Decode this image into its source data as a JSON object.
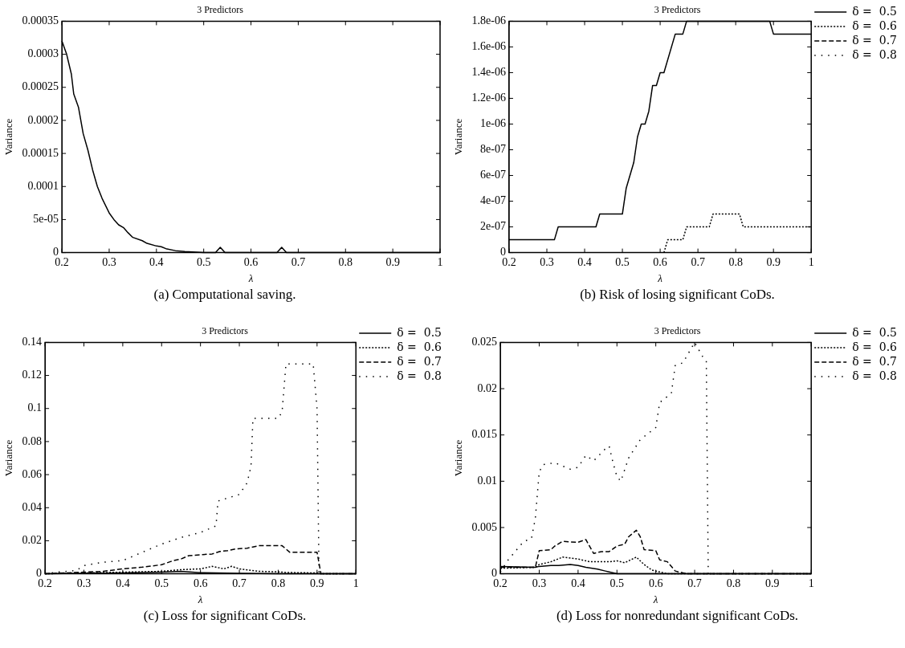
{
  "chart_data": [
    {
      "type": "line",
      "title": "3 Predictors",
      "xlabel": "λ",
      "ylabel": "Variance",
      "annotations": [
        "(a)  Computational saving."
      ],
      "xlim": [
        0.2,
        1
      ],
      "xticks": [
        0.2,
        0.3,
        0.4,
        0.5,
        0.6,
        0.7,
        0.8,
        0.9,
        1
      ],
      "ylim": [
        0,
        0.00035
      ],
      "yticks": [
        0,
        {
          "value": 5e-05,
          "label": "5e-05"
        },
        0.0001,
        0.00015,
        0.0002,
        0.00025,
        0.0003,
        0.00035
      ],
      "legend": false,
      "marker": "none",
      "series": [
        {
          "color": "#000000",
          "line_style": "solid",
          "x": [
            0.2,
            0.21,
            0.22,
            0.225,
            0.235,
            0.245,
            0.255,
            0.265,
            0.275,
            0.285,
            0.3,
            0.31,
            0.32,
            0.33,
            0.34,
            0.35,
            0.37,
            0.38,
            0.4,
            0.41,
            0.42,
            0.44,
            0.46,
            0.5,
            0.525,
            0.535,
            0.545,
            0.655,
            0.665,
            0.675,
            1
          ],
          "values": [
            0.00032,
            0.0003,
            0.00027,
            0.00024,
            0.00022,
            0.00018,
            0.000155,
            0.000125,
            0.0001,
            8.2e-05,
            6e-05,
            5e-05,
            4.2e-05,
            3.8e-05,
            3e-05,
            2.3e-05,
            1.8e-05,
            1.4e-05,
            1e-05,
            9e-06,
            6e-06,
            3e-06,
            1.5e-06,
            0,
            0,
            8e-06,
            0,
            0,
            8e-06,
            0,
            0
          ]
        }
      ]
    },
    {
      "type": "line",
      "title": "3 Predictors",
      "xlabel": "λ",
      "ylabel": "Variance",
      "annotations": [
        "(b) Risk of losing significant CoDs."
      ],
      "xlim": [
        0.2,
        1
      ],
      "xticks": [
        0.2,
        0.3,
        0.4,
        0.5,
        0.6,
        0.7,
        0.8,
        0.9,
        1
      ],
      "ylim": [
        0,
        1.8e-06
      ],
      "yticks": [
        0,
        {
          "value": 2e-07,
          "label": "2e-07"
        },
        {
          "value": 4e-07,
          "label": "4e-07"
        },
        {
          "value": 6e-07,
          "label": "6e-07"
        },
        {
          "value": 8e-07,
          "label": "8e-07"
        },
        {
          "value": 1e-06,
          "label": "1e-06"
        },
        {
          "value": 1.2e-06,
          "label": "1.2e-06"
        },
        {
          "value": 1.4e-06,
          "label": "1.4e-06"
        },
        {
          "value": 1.6e-06,
          "label": "1.6e-06"
        },
        {
          "value": 1.8e-06,
          "label": "1.8e-06"
        }
      ],
      "legend": "right",
      "marker": "none",
      "series": [
        {
          "name": "δ =  0.5",
          "color": "#000000",
          "line_style": "solid",
          "x": [
            0.2,
            0.32,
            0.33,
            0.43,
            0.44,
            0.5,
            0.51,
            0.52,
            0.53,
            0.54,
            0.55,
            0.56,
            0.57,
            0.58,
            0.59,
            0.6,
            0.61,
            0.64,
            0.66,
            0.67,
            0.89,
            0.9,
            1
          ],
          "values": [
            1e-07,
            1e-07,
            2e-07,
            2e-07,
            3e-07,
            3e-07,
            5e-07,
            6e-07,
            7e-07,
            9e-07,
            1e-06,
            1e-06,
            1.1e-06,
            1.3e-06,
            1.3e-06,
            1.4e-06,
            1.4e-06,
            1.7e-06,
            1.7e-06,
            1.8e-06,
            1.8e-06,
            1.7e-06,
            1.7e-06
          ]
        },
        {
          "name": "δ =  0.6",
          "color": "#000000",
          "line_style": "dotted",
          "x": [
            0.61,
            0.62,
            0.66,
            0.67,
            0.73,
            0.74,
            0.81,
            0.82,
            1
          ],
          "values": [
            0,
            1e-07,
            1e-07,
            2e-07,
            2e-07,
            3e-07,
            3e-07,
            2e-07,
            2e-07
          ]
        },
        {
          "name": "δ =  0.7",
          "color": "#000000",
          "line_style": "dashed"
        },
        {
          "name": "δ =  0.8",
          "color": "#000000",
          "line_style": "sparse"
        }
      ]
    },
    {
      "type": "line",
      "title": "3 Predictors",
      "xlabel": "λ",
      "ylabel": "Variance",
      "annotations": [
        "(c) Loss for significant CoDs."
      ],
      "xlim": [
        0.2,
        1
      ],
      "xticks": [
        0.2,
        0.3,
        0.4,
        0.5,
        0.6,
        0.7,
        0.8,
        0.9,
        1
      ],
      "ylim": [
        0,
        0.14
      ],
      "yticks": [
        0,
        0.02,
        0.04,
        0.06,
        0.08,
        0.1,
        0.12,
        0.14
      ],
      "legend": "right",
      "marker": "none",
      "series": [
        {
          "name": "δ =  0.5",
          "color": "#000000",
          "line_style": "solid",
          "x": [
            0.2,
            0.4,
            0.5,
            0.55,
            0.6,
            0.7,
            0.8,
            1
          ],
          "values": [
            0,
            0.0005,
            0.001,
            0.0015,
            0.0007,
            0.0003,
            0.0001,
            0
          ]
        },
        {
          "name": "δ =  0.6",
          "color": "#000000",
          "line_style": "dotted",
          "x": [
            0.2,
            0.3,
            0.4,
            0.5,
            0.55,
            0.6,
            0.63,
            0.66,
            0.68,
            0.7,
            0.75,
            0.8,
            0.82,
            0.9,
            0.91,
            1
          ],
          "values": [
            0,
            0.0005,
            0.001,
            0.0015,
            0.0025,
            0.003,
            0.0045,
            0.003,
            0.0045,
            0.003,
            0.0015,
            0.0012,
            0.0008,
            0.0005,
            0,
            0
          ]
        },
        {
          "name": "δ =  0.7",
          "color": "#000000",
          "line_style": "dashed",
          "x": [
            0.2,
            0.3,
            0.35,
            0.4,
            0.45,
            0.5,
            0.53,
            0.55,
            0.57,
            0.6,
            0.63,
            0.65,
            0.67,
            0.69,
            0.72,
            0.75,
            0.81,
            0.83,
            0.9,
            0.91,
            1
          ],
          "values": [
            0,
            0.001,
            0.0015,
            0.003,
            0.004,
            0.0055,
            0.008,
            0.009,
            0.011,
            0.0115,
            0.012,
            0.0135,
            0.014,
            0.015,
            0.0155,
            0.017,
            0.017,
            0.013,
            0.013,
            0,
            0
          ]
        },
        {
          "name": "δ =  0.8",
          "color": "#000000",
          "line_style": "sparse",
          "x": [
            0.2,
            0.23,
            0.28,
            0.3,
            0.35,
            0.4,
            0.45,
            0.5,
            0.55,
            0.6,
            0.63,
            0.64,
            0.645,
            0.7,
            0.72,
            0.73,
            0.735,
            0.8,
            0.81,
            0.82,
            0.89,
            0.9,
            0.905,
            1
          ],
          "values": [
            0,
            0.001,
            0.002,
            0.005,
            0.007,
            0.008,
            0.013,
            0.018,
            0.022,
            0.025,
            0.028,
            0.029,
            0.044,
            0.048,
            0.055,
            0.065,
            0.094,
            0.094,
            0.098,
            0.127,
            0.127,
            0.1,
            0,
            0
          ]
        }
      ]
    },
    {
      "type": "line",
      "title": "3 Predictors",
      "xlabel": "λ",
      "ylabel": "Variance",
      "annotations": [
        "(d) Loss for nonredundant significant CoDs."
      ],
      "xlim": [
        0.2,
        1
      ],
      "xticks": [
        0.2,
        0.3,
        0.4,
        0.5,
        0.6,
        0.7,
        0.8,
        0.9,
        1
      ],
      "ylim": [
        0,
        0.025
      ],
      "yticks": [
        0,
        0.005,
        0.01,
        0.015,
        0.02,
        0.025
      ],
      "legend": "right",
      "marker": "none",
      "series": [
        {
          "name": "δ =  0.5",
          "color": "#000000",
          "line_style": "solid",
          "x": [
            0.2,
            0.29,
            0.3,
            0.33,
            0.35,
            0.38,
            0.4,
            0.42,
            0.45,
            0.47,
            0.48,
            0.5,
            1
          ],
          "values": [
            0.0008,
            0.0007,
            0.0008,
            0.0009,
            0.0009,
            0.001,
            0.0009,
            0.0007,
            0.0005,
            0.0003,
            0.0002,
            0,
            0
          ]
        },
        {
          "name": "δ =  0.6",
          "color": "#000000",
          "line_style": "dotted",
          "x": [
            0.2,
            0.29,
            0.3,
            0.33,
            0.36,
            0.4,
            0.43,
            0.48,
            0.5,
            0.52,
            0.55,
            0.57,
            0.59,
            0.61,
            0.63,
            1
          ],
          "values": [
            0.0006,
            0.0007,
            0.001,
            0.0013,
            0.0018,
            0.0016,
            0.0013,
            0.0013,
            0.0014,
            0.0012,
            0.0018,
            0.001,
            0.0004,
            0.0002,
            0,
            0
          ]
        },
        {
          "name": "δ =  0.7",
          "color": "#000000",
          "line_style": "dashed",
          "x": [
            0.2,
            0.29,
            0.3,
            0.33,
            0.34,
            0.36,
            0.4,
            0.42,
            0.44,
            0.46,
            0.48,
            0.5,
            0.52,
            0.53,
            0.55,
            0.56,
            0.57,
            0.6,
            0.61,
            0.63,
            0.65,
            0.67,
            0.68,
            1
          ],
          "values": [
            0.0007,
            0.0007,
            0.0025,
            0.0026,
            0.003,
            0.0035,
            0.0034,
            0.0037,
            0.0022,
            0.0024,
            0.0024,
            0.003,
            0.0032,
            0.004,
            0.0047,
            0.004,
            0.0026,
            0.0025,
            0.0015,
            0.0013,
            0.0003,
            0.0001,
            0,
            0
          ]
        },
        {
          "name": "δ =  0.8",
          "color": "#000000",
          "line_style": "sparse",
          "x": [
            0.2,
            0.22,
            0.24,
            0.26,
            0.28,
            0.29,
            0.3,
            0.31,
            0.34,
            0.38,
            0.4,
            0.42,
            0.44,
            0.47,
            0.48,
            0.49,
            0.5,
            0.51,
            0.53,
            0.56,
            0.6,
            0.61,
            0.64,
            0.65,
            0.67,
            0.7,
            0.72,
            0.73,
            0.735,
            1
          ],
          "values": [
            0.0002,
            0.0015,
            0.0025,
            0.0035,
            0.0038,
            0.006,
            0.011,
            0.0118,
            0.012,
            0.0113,
            0.0115,
            0.0128,
            0.0122,
            0.0135,
            0.0138,
            0.012,
            0.0105,
            0.01,
            0.0125,
            0.0145,
            0.0158,
            0.0185,
            0.0195,
            0.0225,
            0.0228,
            0.025,
            0.0235,
            0.023,
            0,
            0
          ]
        }
      ]
    }
  ]
}
